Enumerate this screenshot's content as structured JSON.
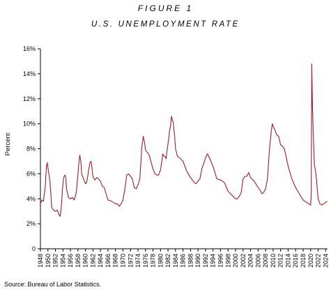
{
  "figure_label": "FIGURE 1",
  "title": "U.S. UNEMPLOYMENT RATE",
  "source": "Source: Bureau of Labor Statistics.",
  "chart_data": {
    "type": "line",
    "title": "U.S. UNEMPLOYMENT RATE",
    "ylabel": "Percent",
    "xlabel": "",
    "ylim": [
      0,
      16
    ],
    "xlim": [
      1948,
      2024.5
    ],
    "y_ticks": [
      0,
      2,
      4,
      6,
      8,
      10,
      12,
      14,
      16
    ],
    "y_tick_labels": [
      "0",
      "2%",
      "4%",
      "6%",
      "8%",
      "10%",
      "12%",
      "14%",
      "16%"
    ],
    "x_ticks": [
      1948,
      1950,
      1952,
      1954,
      1956,
      1958,
      1960,
      1962,
      1964,
      1966,
      1968,
      1970,
      1972,
      1974,
      1976,
      1978,
      1980,
      1982,
      1984,
      1986,
      1988,
      1990,
      1992,
      1994,
      1996,
      1998,
      2000,
      2002,
      2004,
      2006,
      2008,
      2010,
      2012,
      2014,
      2016,
      2018,
      2020,
      2022,
      2024
    ],
    "grid": false,
    "legend": "none",
    "line_color": "#a01c2a",
    "series": [
      {
        "x": [
          1948.0,
          1948.4,
          1948.8,
          1949.0,
          1949.3,
          1949.6,
          1949.8,
          1950.0,
          1950.5,
          1950.8,
          1951.0,
          1951.5,
          1952.0,
          1952.5,
          1953.0,
          1953.3,
          1953.6,
          1953.9,
          1954.2,
          1954.5,
          1954.7,
          1955.0,
          1955.5,
          1956.0,
          1956.5,
          1957.0,
          1957.3,
          1957.6,
          1957.9,
          1958.2,
          1958.5,
          1958.8,
          1959.0,
          1959.5,
          1960.0,
          1960.3,
          1960.6,
          1960.9,
          1961.2,
          1961.5,
          1961.8,
          1962.0,
          1962.5,
          1963.0,
          1963.5,
          1964.0,
          1964.5,
          1965.0,
          1965.5,
          1966.0,
          1967.0,
          1968.0,
          1968.5,
          1969.0,
          1969.5,
          1970.0,
          1970.5,
          1971.0,
          1971.5,
          1972.0,
          1972.5,
          1973.0,
          1973.5,
          1974.0,
          1974.5,
          1975.0,
          1975.4,
          1975.8,
          1976.0,
          1976.5,
          1977.0,
          1977.5,
          1978.0,
          1978.5,
          1979.0,
          1979.5,
          1980.0,
          1980.3,
          1980.6,
          1980.9,
          1981.2,
          1981.5,
          1981.8,
          1982.1,
          1982.4,
          1982.7,
          1982.9,
          1983.1,
          1983.4,
          1983.7,
          1984.0,
          1984.5,
          1985.0,
          1986.0,
          1987.0,
          1988.0,
          1989.0,
          1989.5,
          1990.0,
          1990.5,
          1991.0,
          1991.5,
          1992.0,
          1992.5,
          1993.0,
          1994.0,
          1995.0,
          1996.0,
          1997.0,
          1998.0,
          1999.0,
          2000.0,
          2000.5,
          2001.0,
          2001.5,
          2002.0,
          2002.5,
          2003.0,
          2003.5,
          2004.0,
          2005.0,
          2006.0,
          2006.5,
          2007.0,
          2007.5,
          2008.0,
          2008.5,
          2009.0,
          2009.5,
          2009.8,
          2010.0,
          2010.5,
          2011.0,
          2011.5,
          2012.0,
          2012.5,
          2013.0,
          2014.0,
          2015.0,
          2016.0,
          2017.0,
          2018.0,
          2019.0,
          2019.5,
          2020.0,
          2020.15,
          2020.3,
          2020.5,
          2020.8,
          2021.0,
          2021.3,
          2021.6,
          2022.0,
          2022.5,
          2023.0,
          2023.5,
          2024.0,
          2024.4
        ],
        "values": [
          3.6,
          3.9,
          3.8,
          4.3,
          5.0,
          6.6,
          6.9,
          6.5,
          5.5,
          4.3,
          3.3,
          3.1,
          3.0,
          3.1,
          2.7,
          2.6,
          3.5,
          4.9,
          5.7,
          5.9,
          5.8,
          4.7,
          4.1,
          4.0,
          4.1,
          3.9,
          4.2,
          4.6,
          5.6,
          6.7,
          7.5,
          6.9,
          6.0,
          5.6,
          5.2,
          5.3,
          5.8,
          6.4,
          6.9,
          7.0,
          6.3,
          5.8,
          5.5,
          5.7,
          5.6,
          5.4,
          5.0,
          4.9,
          4.4,
          3.9,
          3.8,
          3.6,
          3.6,
          3.4,
          3.6,
          3.9,
          4.8,
          5.9,
          6.0,
          5.8,
          5.6,
          4.9,
          4.8,
          5.1,
          5.6,
          8.1,
          9.0,
          8.4,
          7.9,
          7.7,
          7.5,
          6.9,
          6.4,
          6.0,
          5.9,
          5.9,
          6.3,
          6.9,
          7.6,
          7.4,
          7.4,
          7.2,
          8.0,
          8.6,
          9.4,
          9.9,
          10.6,
          10.4,
          10.1,
          9.2,
          8.0,
          7.4,
          7.3,
          7.0,
          6.2,
          5.7,
          5.3,
          5.2,
          5.4,
          5.6,
          6.4,
          6.8,
          7.3,
          7.6,
          7.3,
          6.6,
          5.6,
          5.5,
          5.3,
          4.6,
          4.3,
          4.0,
          4.0,
          4.2,
          4.5,
          5.6,
          5.8,
          5.8,
          6.1,
          5.7,
          5.4,
          4.9,
          4.7,
          4.4,
          4.5,
          4.8,
          5.6,
          7.8,
          9.4,
          10.0,
          9.8,
          9.5,
          9.1,
          9.0,
          8.3,
          8.2,
          8.0,
          6.6,
          5.6,
          4.9,
          4.4,
          3.9,
          3.7,
          3.6,
          3.5,
          4.4,
          14.8,
          11.1,
          8.4,
          6.7,
          6.2,
          5.4,
          4.0,
          3.6,
          3.5,
          3.6,
          3.7,
          3.8
        ]
      }
    ]
  }
}
